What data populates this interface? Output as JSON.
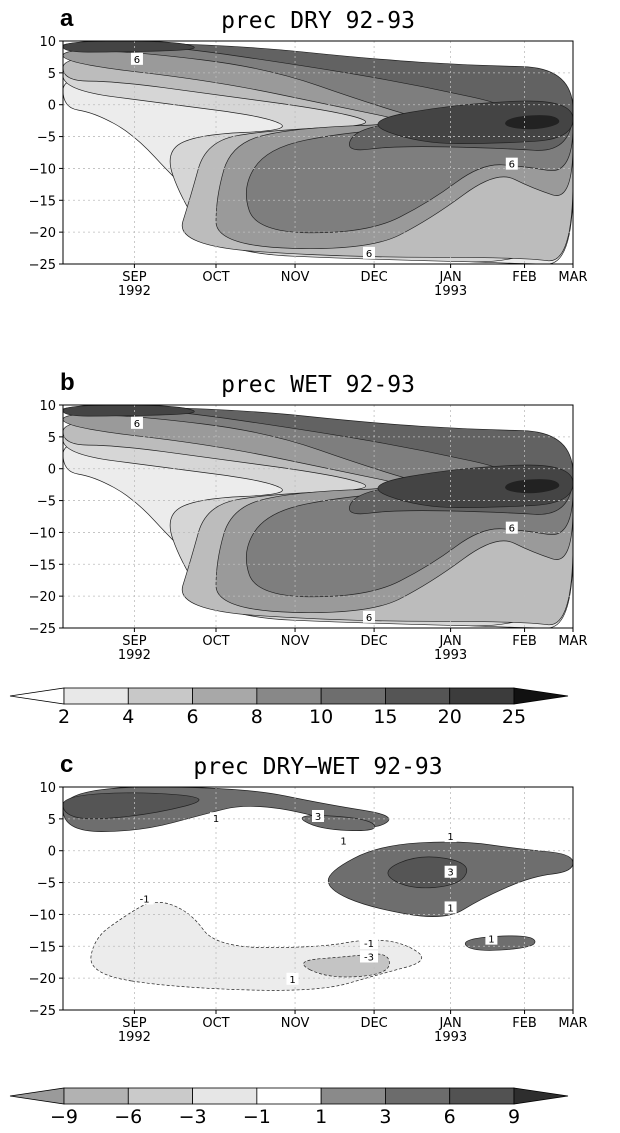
{
  "chart_data": [
    {
      "type": "heatmap",
      "panel_label": "a",
      "title": "prec DRY 92-93",
      "y_ticks": [
        10,
        5,
        0,
        -5,
        -10,
        -15,
        -20,
        -25
      ],
      "ylim": [
        -25,
        10
      ],
      "x_ticks": [
        {
          "month": "SEP",
          "year": "1992"
        },
        {
          "month": "OCT",
          "year": ""
        },
        {
          "month": "NOV",
          "year": ""
        },
        {
          "month": "DEC",
          "year": ""
        },
        {
          "month": "JAN",
          "year": "1993"
        },
        {
          "month": "FEB",
          "year": ""
        },
        {
          "month": "MAR",
          "year": ""
        }
      ],
      "contour_labels": [
        "6",
        "6",
        "6"
      ],
      "grid": true
    },
    {
      "type": "heatmap",
      "panel_label": "b",
      "title": "prec WET 92-93",
      "y_ticks": [
        10,
        5,
        0,
        -5,
        -10,
        -15,
        -20,
        -25
      ],
      "ylim": [
        -25,
        10
      ],
      "x_ticks": [
        {
          "month": "SEP",
          "year": "1992"
        },
        {
          "month": "OCT",
          "year": ""
        },
        {
          "month": "NOV",
          "year": ""
        },
        {
          "month": "DEC",
          "year": ""
        },
        {
          "month": "JAN",
          "year": "1993"
        },
        {
          "month": "FEB",
          "year": ""
        },
        {
          "month": "MAR",
          "year": ""
        }
      ],
      "contour_labels": [
        "6",
        "6",
        "6"
      ],
      "grid": true
    },
    {
      "type": "heatmap",
      "panel_label": "c",
      "title": "prec DRY−WET 92-93",
      "y_ticks": [
        10,
        5,
        0,
        -5,
        -10,
        -15,
        -20,
        -25
      ],
      "ylim": [
        -25,
        10
      ],
      "x_ticks": [
        {
          "month": "SEP",
          "year": "1992"
        },
        {
          "month": "OCT",
          "year": ""
        },
        {
          "month": "NOV",
          "year": ""
        },
        {
          "month": "DEC",
          "year": ""
        },
        {
          "month": "JAN",
          "year": "1993"
        },
        {
          "month": "FEB",
          "year": ""
        },
        {
          "month": "MAR",
          "year": ""
        }
      ],
      "contour_labels": [
        "1",
        "3",
        "1",
        "1",
        "3",
        "1",
        "-1",
        "-1",
        "-3",
        "1",
        "1"
      ],
      "grid": true
    }
  ],
  "colorbar_abs": {
    "levels": [
      "2",
      "4",
      "6",
      "8",
      "10",
      "15",
      "20",
      "25"
    ],
    "colors": [
      "#ffffff",
      "#e8e8e8",
      "#c8c8c8",
      "#a8a8a8",
      "#888888",
      "#6e6e6e",
      "#555555",
      "#3c3c3c",
      "#111111"
    ]
  },
  "colorbar_diff": {
    "levels": [
      "−9",
      "−6",
      "−3",
      "−1",
      "1",
      "3",
      "6",
      "9"
    ],
    "colors": [
      "#9a9a9a",
      "#b2b2b2",
      "#cacaca",
      "#e6e6e6",
      "#ffffff",
      "#8a8a8a",
      "#6c6c6c",
      "#525252",
      "#2e2e2e"
    ]
  },
  "colors": {
    "frame": "#000000",
    "grid": "#bdbdbd",
    "l1": "#ececec",
    "l2": "#d6d6d6",
    "l3": "#bcbcbc",
    "l4": "#9a9a9a",
    "l5": "#7e7e7e",
    "l6": "#626262",
    "l7": "#444444",
    "l8": "#222222",
    "dpos": "#6e6e6e",
    "dpos2": "#555555",
    "dneg": "#ececec",
    "dneg2": "#c4c4c4"
  }
}
